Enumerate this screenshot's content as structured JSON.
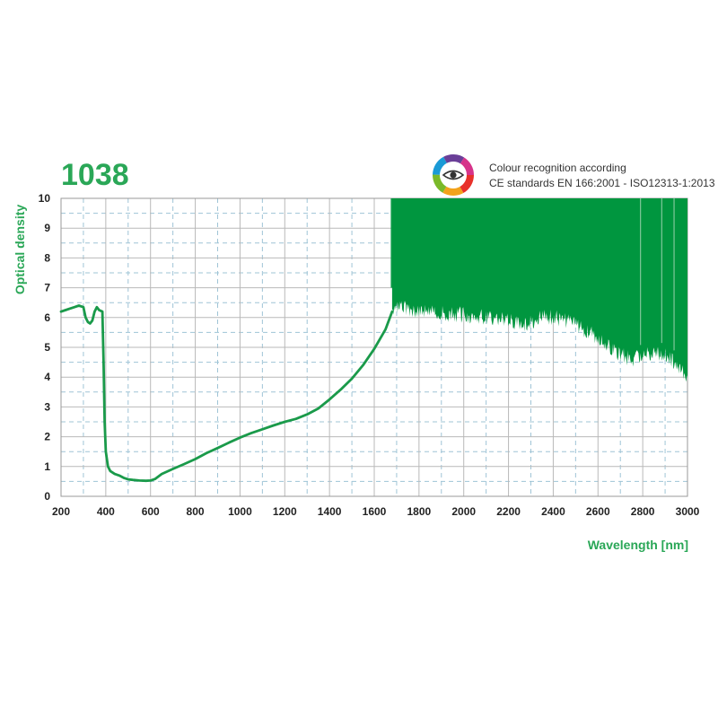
{
  "product_id": "1038",
  "accent_color": "#2aa757",
  "curve_color": "#1a9a4a",
  "fill_color": "#00963f",
  "note": {
    "icon": "colour-wheel-eye-icon",
    "line1": "Colour recognition according",
    "line2": "CE standards EN 166:2001 - ISO12313-1:2013"
  },
  "chart_data": {
    "type": "line",
    "title": "",
    "xlabel": "Wavelength [nm]",
    "ylabel": "Optical density",
    "xlim": [
      200,
      3000
    ],
    "ylim": [
      0,
      10
    ],
    "xticks": [
      200,
      400,
      600,
      800,
      1000,
      1200,
      1400,
      1600,
      1800,
      2000,
      2200,
      2400,
      2600,
      2800,
      3000
    ],
    "yticks": [
      0,
      1,
      2,
      3,
      4,
      5,
      6,
      7,
      8,
      9,
      10
    ],
    "grid": true,
    "series": [
      {
        "points": [
          [
            200,
            6.2
          ],
          [
            220,
            6.25
          ],
          [
            240,
            6.3
          ],
          [
            260,
            6.35
          ],
          [
            280,
            6.4
          ],
          [
            300,
            6.35
          ],
          [
            310,
            6.0
          ],
          [
            320,
            5.85
          ],
          [
            330,
            5.8
          ],
          [
            340,
            5.9
          ],
          [
            350,
            6.2
          ],
          [
            360,
            6.35
          ],
          [
            370,
            6.25
          ],
          [
            385,
            6.2
          ],
          [
            390,
            4.5
          ],
          [
            395,
            2.5
          ],
          [
            400,
            1.5
          ],
          [
            410,
            1.0
          ],
          [
            420,
            0.85
          ],
          [
            440,
            0.75
          ],
          [
            460,
            0.7
          ],
          [
            480,
            0.62
          ],
          [
            500,
            0.57
          ],
          [
            520,
            0.55
          ],
          [
            550,
            0.53
          ],
          [
            580,
            0.52
          ],
          [
            600,
            0.53
          ],
          [
            620,
            0.58
          ],
          [
            650,
            0.75
          ],
          [
            700,
            0.92
          ],
          [
            750,
            1.08
          ],
          [
            800,
            1.25
          ],
          [
            850,
            1.45
          ],
          [
            900,
            1.62
          ],
          [
            950,
            1.8
          ],
          [
            1000,
            1.97
          ],
          [
            1050,
            2.12
          ],
          [
            1100,
            2.25
          ],
          [
            1150,
            2.38
          ],
          [
            1200,
            2.5
          ],
          [
            1250,
            2.6
          ],
          [
            1300,
            2.75
          ],
          [
            1350,
            2.95
          ],
          [
            1400,
            3.25
          ],
          [
            1450,
            3.58
          ],
          [
            1500,
            3.95
          ],
          [
            1550,
            4.4
          ],
          [
            1600,
            4.95
          ],
          [
            1650,
            5.6
          ],
          [
            1680,
            6.2
          ]
        ]
      },
      {
        "fill": "noise-band",
        "ceiling": 10,
        "floor_points": [
          [
            1680,
            6.3
          ],
          [
            1700,
            6.35
          ],
          [
            1750,
            6.3
          ],
          [
            1800,
            6.25
          ],
          [
            1850,
            6.2
          ],
          [
            1900,
            6.15
          ],
          [
            1950,
            6.1
          ],
          [
            2000,
            6.1
          ],
          [
            2050,
            6.05
          ],
          [
            2100,
            6.0
          ],
          [
            2150,
            5.95
          ],
          [
            2200,
            5.9
          ],
          [
            2250,
            5.75
          ],
          [
            2300,
            5.85
          ],
          [
            2350,
            6.05
          ],
          [
            2400,
            6.0
          ],
          [
            2450,
            5.9
          ],
          [
            2500,
            5.75
          ],
          [
            2550,
            5.55
          ],
          [
            2600,
            5.35
          ],
          [
            2650,
            5.05
          ],
          [
            2700,
            4.75
          ],
          [
            2750,
            4.6
          ],
          [
            2800,
            4.7
          ],
          [
            2850,
            4.85
          ],
          [
            2900,
            4.7
          ],
          [
            2950,
            4.45
          ],
          [
            3000,
            4.0
          ]
        ]
      }
    ]
  }
}
